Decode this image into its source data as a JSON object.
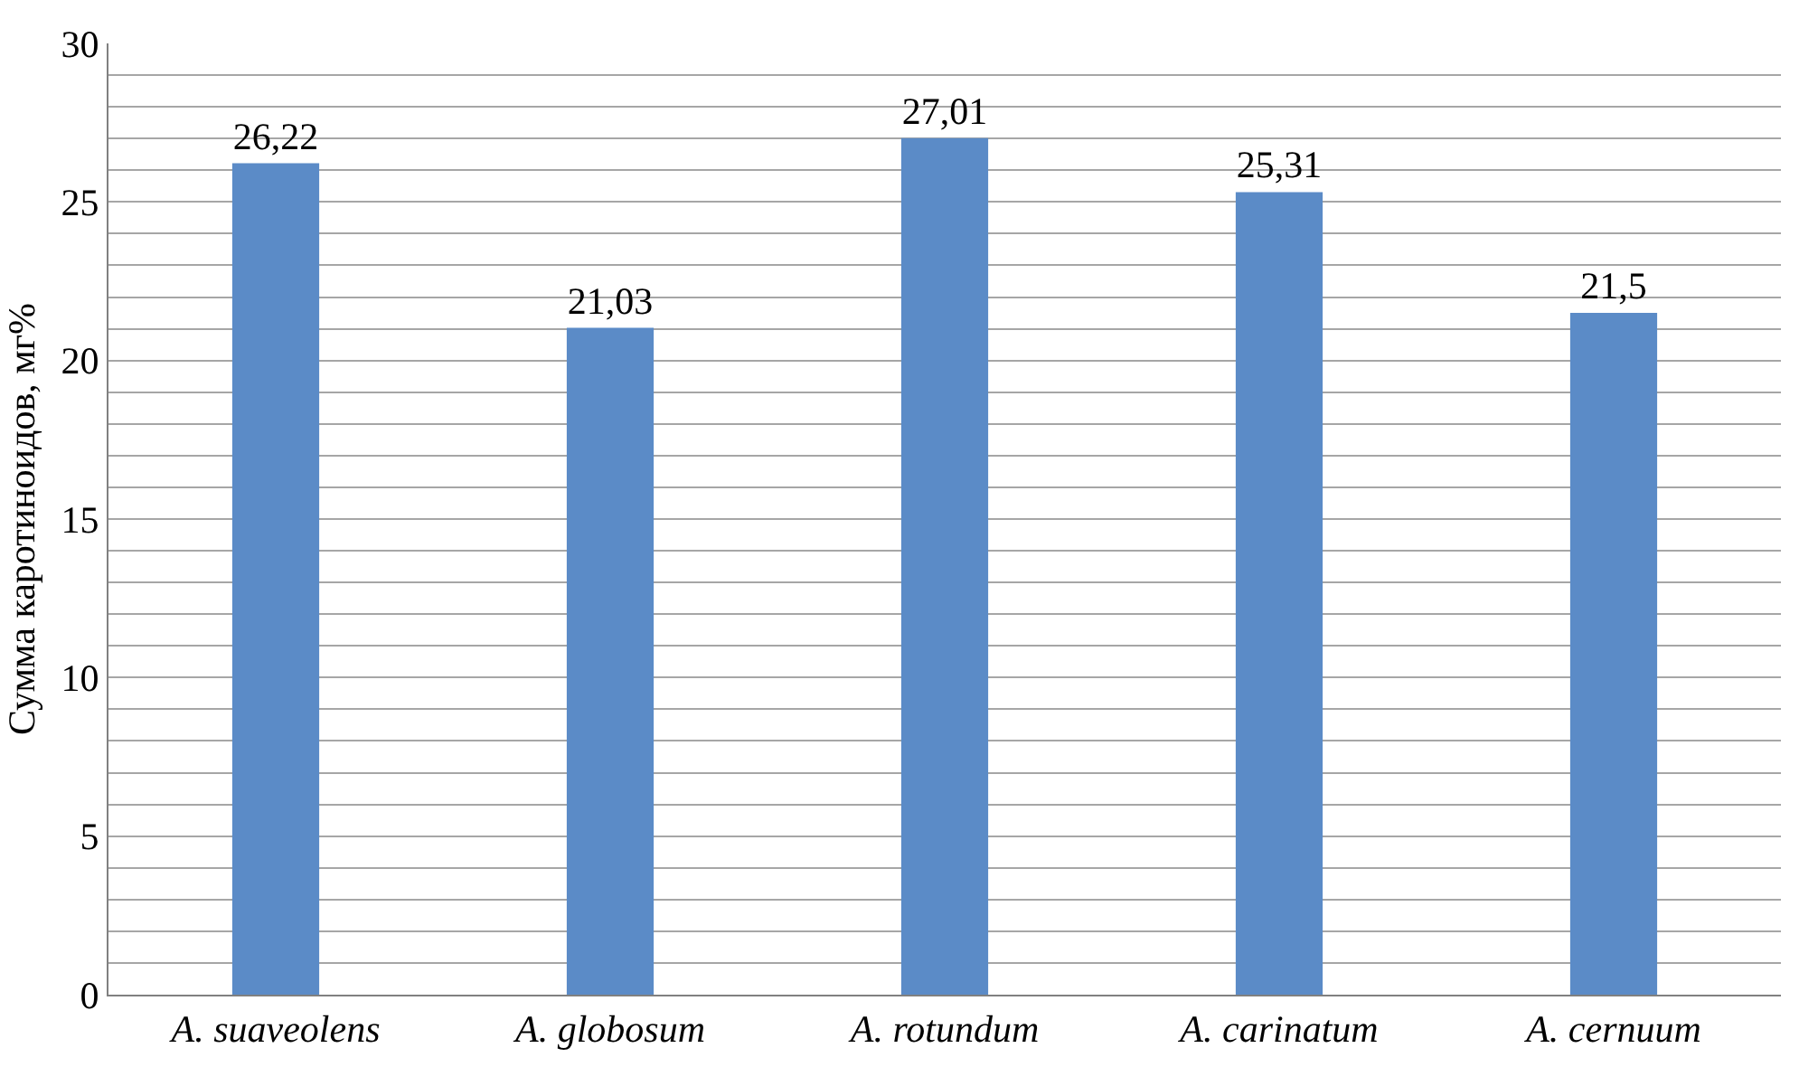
{
  "chart_data": {
    "type": "bar",
    "ylabel": "Сумма каротиноидов, мг%",
    "categories": [
      "A. suaveolens",
      "A. globosum",
      "A. rotundum",
      "A. carinatum",
      "A. cernuum"
    ],
    "values": [
      26.22,
      21.03,
      27.01,
      25.31,
      21.5
    ],
    "value_labels": [
      "26,22",
      "21,03",
      "27,01",
      "25,31",
      "21,5"
    ],
    "color": "#5b8bc7",
    "ylim": [
      0,
      30
    ],
    "yticks": [
      0,
      {
        "value": 1,
        "label": null
      },
      {
        "value": 2,
        "label": null
      },
      {
        "value": 3,
        "label": null
      },
      {
        "value": 4,
        "label": null
      },
      5,
      {
        "value": 6,
        "label": null
      },
      {
        "value": 7,
        "label": null
      },
      {
        "value": 8,
        "label": null
      },
      {
        "value": 9,
        "label": null
      },
      10,
      {
        "value": 11,
        "label": null
      },
      {
        "value": 12,
        "label": null
      },
      {
        "value": 13,
        "label": null
      },
      {
        "value": 14,
        "label": null
      },
      15,
      {
        "value": 16,
        "label": null
      },
      {
        "value": 17,
        "label": null
      },
      {
        "value": 18,
        "label": null
      },
      {
        "value": 19,
        "label": null
      },
      20,
      {
        "value": 21,
        "label": null
      },
      {
        "value": 22,
        "label": null
      },
      {
        "value": 23,
        "label": null
      },
      {
        "value": 24,
        "label": null
      },
      25,
      {
        "value": 26,
        "label": null
      },
      {
        "value": 27,
        "label": null
      },
      {
        "value": 28,
        "label": null
      },
      {
        "value": 29,
        "label": null
      },
      30
    ],
    "grid": "y"
  }
}
